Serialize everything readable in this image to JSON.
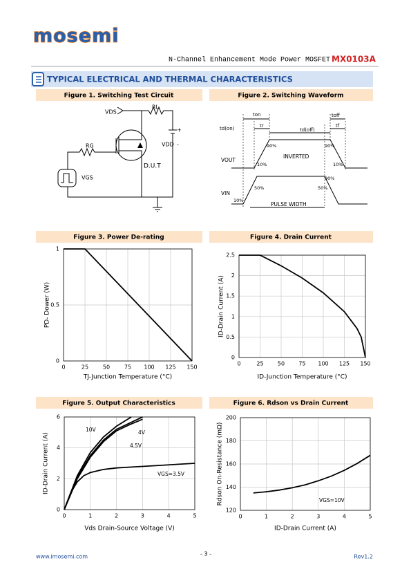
{
  "header": {
    "logo": "mosemi",
    "subtitle": "N-Channel Enhancement Mode Power MOSFET",
    "part_number": "MX0103A"
  },
  "section_title": "TYPICAL ELECTRICAL AND THERMAL CHARACTERISTICS",
  "figure1": {
    "title": "Figure 1. Switching Test Circuit",
    "labels": [
      "VDS",
      "RL",
      "+",
      "VDD",
      "-",
      "RG",
      "D.U.T",
      "VGS"
    ]
  },
  "figure2": {
    "title": "Figure 2. Switching Waveform",
    "labels": [
      "td(on)",
      "ton",
      "tr",
      "td(off)",
      "toff",
      "tf",
      "90%",
      "90%",
      "10%",
      "10%",
      "INVERTED",
      "VOUT",
      "VIN",
      "90%",
      "50%",
      "50%",
      "10%",
      "PULSE WIDTH"
    ]
  },
  "chart_data": [
    {
      "type": "line",
      "title": "Figure 3. Power De-rating",
      "xlabel": "TJ-Junction Temperature (°C)",
      "ylabel": "PD- Dower (W)",
      "xlim": [
        0,
        150
      ],
      "xticks": [
        0,
        25,
        50,
        75,
        100,
        125,
        150
      ],
      "ylim": [
        0,
        1
      ],
      "yticks": [
        0,
        0.5,
        1
      ],
      "grid": true,
      "series": [
        {
          "color": "#000000",
          "x": [
            0,
            25,
            150
          ],
          "values": [
            1,
            1,
            0
          ]
        }
      ]
    },
    {
      "type": "line",
      "title": "Figure 4. Drain Current",
      "xlabel": "ID-Junction Temperature (°C)",
      "ylabel": "ID-Drain Current (A)",
      "xlim": [
        0,
        150
      ],
      "xticks": [
        0,
        25,
        50,
        75,
        100,
        125,
        150
      ],
      "ylim": [
        0,
        2.5
      ],
      "yticks": [
        0,
        0.5,
        1,
        1.5,
        2,
        2.5
      ],
      "grid": true,
      "series": [
        {
          "color": "#000000",
          "x": [
            0,
            25,
            50,
            75,
            100,
            125,
            140,
            145,
            150
          ],
          "values": [
            2.5,
            2.5,
            2.24,
            1.94,
            1.58,
            1.12,
            0.71,
            0.5,
            0
          ]
        }
      ]
    },
    {
      "type": "line",
      "title": "Figure 5. Output Characteristics",
      "xlabel": "Vds Drain-Source Voltage (V)",
      "ylabel": "ID-Drain Current (A)",
      "xlim": [
        0,
        5
      ],
      "xticks": [
        0,
        1,
        2,
        3,
        4,
        5
      ],
      "ylim": [
        0,
        6
      ],
      "yticks": [
        0,
        2,
        4,
        6
      ],
      "grid": true,
      "series": [
        {
          "name": "10V",
          "color": "#000000",
          "x": [
            0,
            0.5,
            1,
            1.5,
            2,
            2.57
          ],
          "values": [
            0,
            2.2,
            3.7,
            4.7,
            5.4,
            6
          ]
        },
        {
          "name": "4.5V",
          "color": "#000000",
          "x": [
            0,
            0.5,
            1,
            1.5,
            2,
            2.5,
            3
          ],
          "values": [
            0,
            2.1,
            3.5,
            4.5,
            5.2,
            5.6,
            6
          ]
        },
        {
          "name": "4V",
          "color": "#000000",
          "x": [
            0,
            0.5,
            1,
            1.5,
            2,
            2.5,
            3
          ],
          "values": [
            0,
            2,
            3.4,
            4.4,
            5.1,
            5.5,
            5.85
          ]
        },
        {
          "name": "VGS=3.5V",
          "color": "#000000",
          "x": [
            0,
            0.25,
            0.5,
            0.75,
            1,
            1.5,
            2,
            3,
            4,
            5
          ],
          "values": [
            0,
            1.1,
            1.8,
            2.2,
            2.4,
            2.6,
            2.7,
            2.8,
            2.9,
            3
          ]
        }
      ]
    },
    {
      "type": "line",
      "title": "Figure 6. Rdson vs Drain Current",
      "xlabel": "ID-Drain Current (A)",
      "ylabel": "Rdson On-Resistance (mΩ)",
      "xlim": [
        0,
        5
      ],
      "xticks": [
        0,
        1,
        2,
        3,
        4,
        5
      ],
      "ylim": [
        120,
        200
      ],
      "yticks": [
        120,
        140,
        160,
        180,
        200
      ],
      "grid": true,
      "annotation": "VGS=10V",
      "series": [
        {
          "color": "#000000",
          "x": [
            0.5,
            1,
            1.5,
            2,
            2.5,
            3,
            3.5,
            4,
            4.5,
            5
          ],
          "values": [
            135,
            136,
            137.5,
            139.5,
            142,
            145.5,
            149.5,
            154.5,
            160.5,
            167.5
          ]
        }
      ]
    }
  ],
  "footer": {
    "url": "www.imosemi.com",
    "page": "- 3 -",
    "revision": "Rev1.2"
  }
}
